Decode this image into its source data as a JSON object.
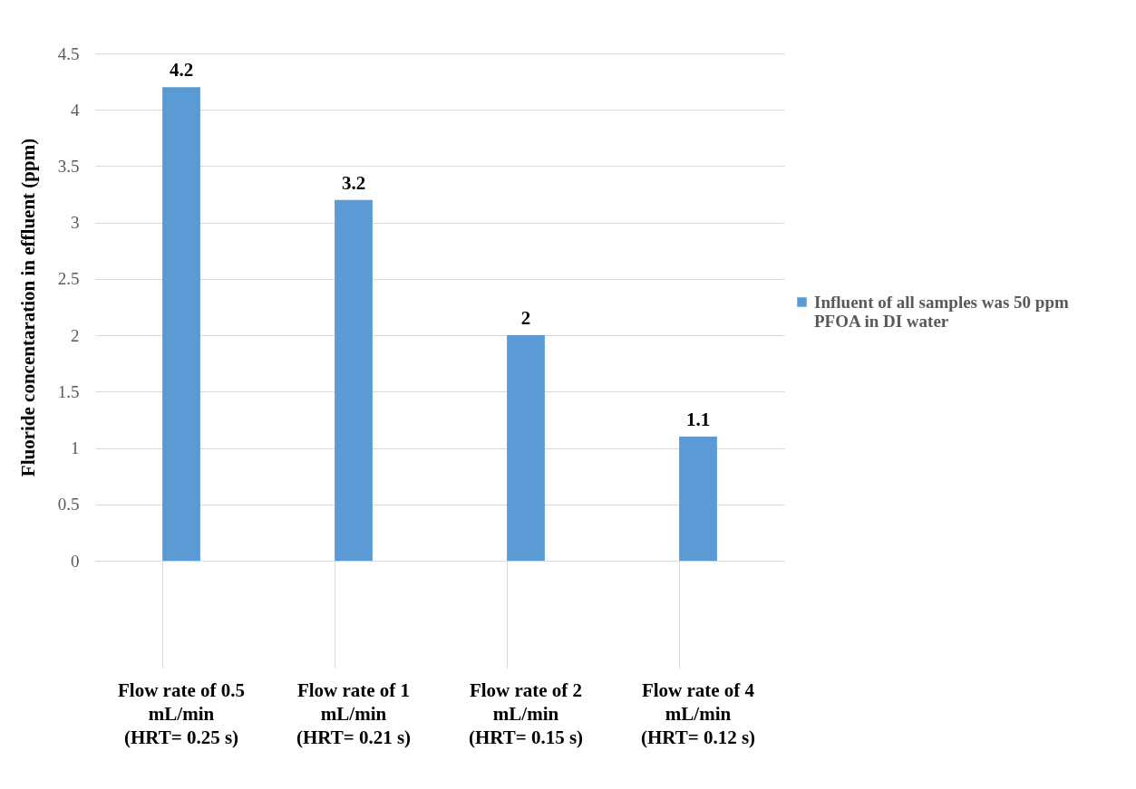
{
  "chart_data": {
    "type": "bar",
    "ylabel": "Fluoride concentaration in effluent (ppm)",
    "categories": [
      "Flow rate of 0.5\nmL/min\n\n(HRT= 0.25 s)",
      "Flow rate of 1\nmL/min\n\n(HRT= 0.21 s)",
      "Flow rate of 2\nmL/min\n\n(HRT= 0.15 s)",
      "Flow rate of 4\nmL/min\n\n(HRT= 0.12 s)"
    ],
    "series": [
      {
        "name": "Influent of all samples was 50 ppm\nPFOA in DI water",
        "color": "#5b9bd5",
        "values": [
          4.2,
          3.2,
          2,
          1.1
        ]
      }
    ],
    "ylim": [
      0,
      4.5
    ],
    "yticks": [
      0,
      0.5,
      1,
      1.5,
      2,
      2.5,
      3,
      3.5,
      4,
      4.5
    ],
    "grid": "y",
    "legend": "right",
    "data_labels": true
  }
}
